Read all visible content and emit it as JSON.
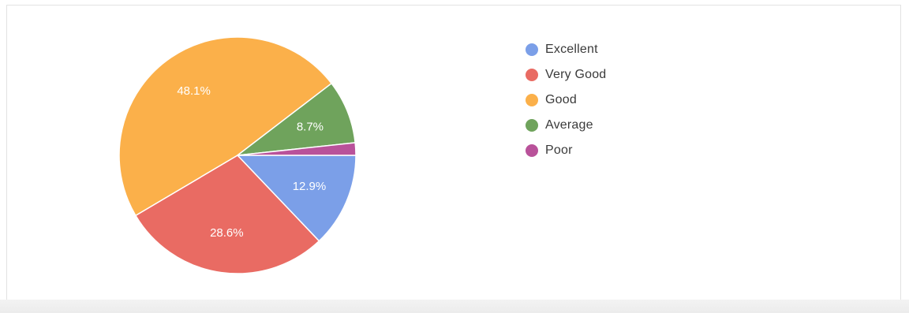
{
  "chart_data": {
    "type": "pie",
    "title": "",
    "legend_position": "right",
    "categories": [
      "Excellent",
      "Very Good",
      "Good",
      "Average",
      "Poor"
    ],
    "values": [
      12.9,
      28.6,
      48.1,
      8.7,
      1.7
    ],
    "labels": [
      "12.9%",
      "28.6%",
      "48.1%",
      "8.7%",
      ""
    ],
    "colors": [
      "#7b9fe8",
      "#e96b63",
      "#fbb04a",
      "#6fa35c",
      "#b9529a"
    ]
  }
}
